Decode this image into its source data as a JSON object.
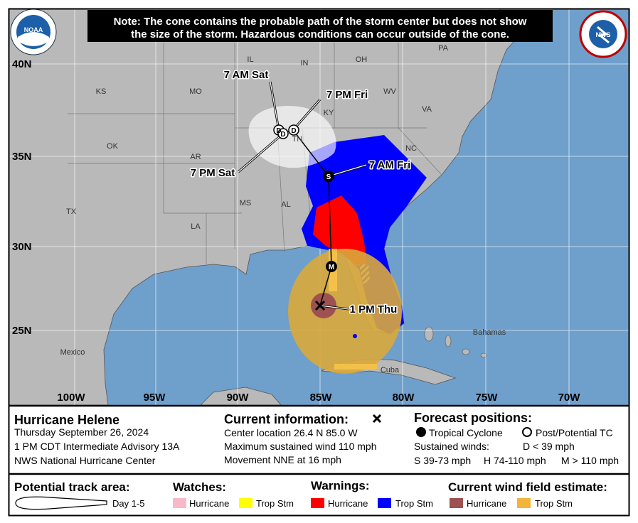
{
  "note": {
    "lines": [
      "Note: The cone contains the probable path of the storm center but does not show",
      "the size of the storm. Hazardous conditions can occur outside of the cone."
    ]
  },
  "logos": {
    "noaa": "NOAA",
    "nws": "NWS"
  },
  "map": {
    "latitude_labels": [
      "40N",
      "35N",
      "30N",
      "25N"
    ],
    "longitude_labels": [
      "100W",
      "95W",
      "90W",
      "85W",
      "80W",
      "75W",
      "70W"
    ],
    "places": [
      "IL",
      "IN",
      "OH",
      "PA",
      "KS",
      "MO",
      "KY",
      "WV",
      "VA",
      "OK",
      "AR",
      "TN",
      "NC",
      "TX",
      "MS",
      "AL",
      "LA",
      "Mexico",
      "Cuba",
      "Bahamas"
    ],
    "forecast_labels": [
      "7 AM Sat",
      "7 PM Fri",
      "7 AM Fri",
      "7 PM Sat",
      "1 PM Thu"
    ],
    "markers": [
      "M",
      "S",
      "D",
      "D",
      "D"
    ]
  },
  "info": {
    "storm_name": "Hurricane Helene",
    "date": "Thursday September 26, 2024",
    "advisory": "1 PM CDT Intermediate Advisory 13A",
    "office": "NWS National Hurricane Center"
  },
  "current": {
    "title": "Current information:",
    "lines": [
      "Center location 26.4 N 85.0 W",
      "Maximum sustained wind 110 mph",
      "Movement NNE at 16 mph"
    ]
  },
  "forecast": {
    "title": "Forecast positions:",
    "tropical_cyclone": "Tropical Cyclone",
    "post_potential": "Post/Potential TC",
    "sustained_winds": "Sustained winds:",
    "d": "D < 39 mph",
    "s": "S 39-73 mph",
    "h": "H 74-110 mph",
    "m": "M > 110 mph"
  },
  "legend": {
    "track_title": "Potential track area:",
    "track_day": "Day 1-5",
    "watches_title": "Watches:",
    "watch_hurricane": "Hurricane",
    "watch_trop": "Trop Stm",
    "warnings_title": "Warnings:",
    "warning_hurricane": "Hurricane",
    "warning_trop": "Trop Stm",
    "wind_title": "Current wind field estimate:",
    "wind_hurricane": "Hurricane",
    "wind_trop": "Trop Stm"
  }
}
